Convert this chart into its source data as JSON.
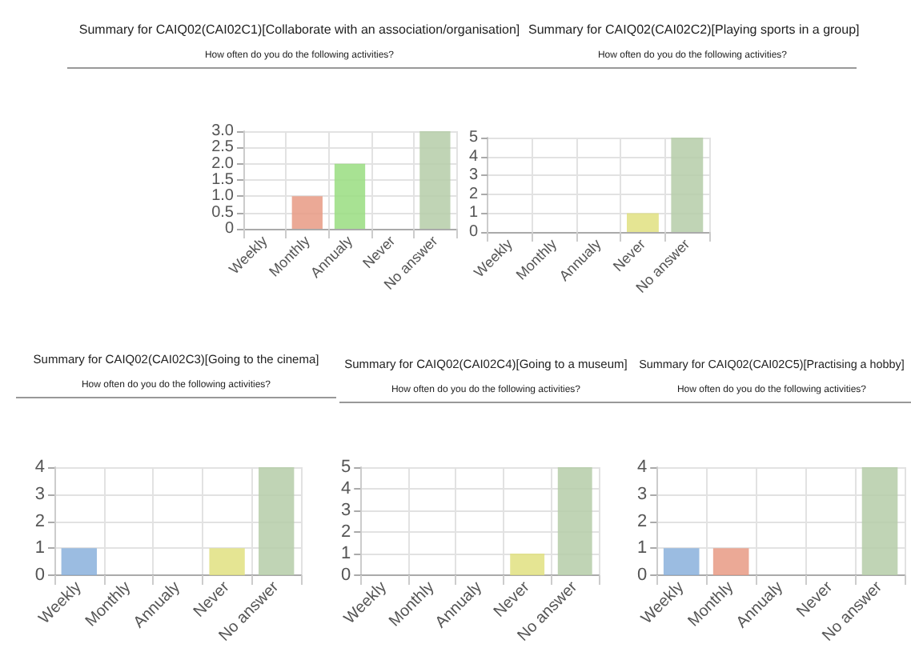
{
  "chart_data": [
    {
      "type": "bar",
      "title": "Summary for CAIQ02(CAI02C1)[Collaborate with an association/organisation]",
      "subtitle": "How often do you do the following activities?",
      "categories": [
        "Weekly",
        "Monthly",
        "Annualy",
        "Never",
        "No answer"
      ],
      "values": [
        0,
        1,
        2,
        0,
        3
      ],
      "colors": [
        "#8ab0dc",
        "#e89a84",
        "#99dd80",
        "#e0e080",
        "#b5cca8"
      ],
      "ylim": [
        0,
        3
      ],
      "yticks": [
        0,
        0.5,
        {
          "value": 1,
          "label": "1.0"
        },
        1.5,
        {
          "value": 2,
          "label": "2.0"
        },
        2.5,
        {
          "value": 3,
          "label": "3.0"
        }
      ],
      "grid": true
    },
    {
      "type": "bar",
      "title": "Summary for CAIQ02(CAI02C2)[Playing sports in a group]",
      "subtitle": "How often do you do the following activities?",
      "categories": [
        "Weekly",
        "Monthly",
        "Annualy",
        "Never",
        "No answer"
      ],
      "values": [
        0,
        0,
        0,
        1,
        5
      ],
      "colors": [
        "#8ab0dc",
        "#e89a84",
        "#99dd80",
        "#e0e080",
        "#b5cca8"
      ],
      "ylim": [
        0,
        5
      ],
      "yticks": [
        0,
        1,
        2,
        3,
        4,
        5
      ],
      "grid": true
    },
    {
      "type": "bar",
      "title": "Summary for CAIQ02(CAI02C3)[Going to the cinema]",
      "subtitle": "How often do you do the following activities?",
      "categories": [
        "Weekly",
        "Monthly",
        "Annualy",
        "Never",
        "No answer"
      ],
      "values": [
        1,
        0,
        0,
        1,
        4
      ],
      "colors": [
        "#8ab0dc",
        "#e89a84",
        "#99dd80",
        "#e0e080",
        "#b5cca8"
      ],
      "ylim": [
        0,
        4
      ],
      "yticks": [
        0,
        1,
        2,
        3,
        4
      ],
      "grid": true
    },
    {
      "type": "bar",
      "title": "Summary for CAIQ02(CAI02C4)[Going to a museum]",
      "subtitle": "How often do you do the following activities?",
      "categories": [
        "Weekly",
        "Monthly",
        "Annualy",
        "Never",
        "No answer"
      ],
      "values": [
        0,
        0,
        0,
        1,
        5
      ],
      "colors": [
        "#8ab0dc",
        "#e89a84",
        "#99dd80",
        "#e0e080",
        "#b5cca8"
      ],
      "ylim": [
        0,
        5
      ],
      "yticks": [
        0,
        1,
        2,
        3,
        4,
        5
      ],
      "grid": true
    },
    {
      "type": "bar",
      "title": "Summary for CAIQ02(CAI02C5)[Practising a hobby]",
      "subtitle": "How often do you do the following activities?",
      "categories": [
        "Weekly",
        "Monthly",
        "Annualy",
        "Never",
        "No answer"
      ],
      "values": [
        1,
        1,
        0,
        0,
        4
      ],
      "colors": [
        "#8ab0dc",
        "#e89a84",
        "#99dd80",
        "#e0e080",
        "#b5cca8"
      ],
      "ylim": [
        0,
        4
      ],
      "yticks": [
        0,
        1,
        2,
        3,
        4
      ],
      "grid": true
    }
  ]
}
